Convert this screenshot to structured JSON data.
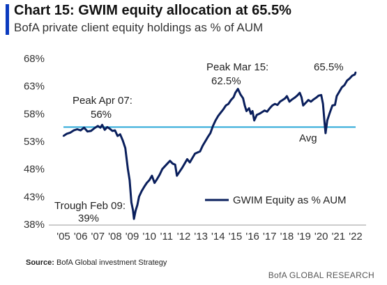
{
  "header": {
    "title": "Chart 15: GWIM equity allocation at 65.5%",
    "subtitle": "BofA private client equity holdings as % of AUM"
  },
  "footer": {
    "source_label": "Source:",
    "source_text": "BofA Global investment Strategy",
    "brand": "BofA GLOBAL RESEARCH"
  },
  "colors": {
    "series": "#0a1f5c",
    "average": "#29a8d8",
    "accent": "#0b3bbf"
  },
  "chart_data": {
    "type": "line",
    "title": "Chart 15: GWIM equity allocation at 65.5%",
    "subtitle": "BofA private client equity holdings as % of AUM",
    "xlabel": "",
    "ylabel": "",
    "ylim": [
      38,
      68
    ],
    "yticks": [
      "38%",
      "43%",
      "48%",
      "53%",
      "58%",
      "63%",
      "68%"
    ],
    "ytick_values": [
      38,
      43,
      48,
      53,
      58,
      63,
      68
    ],
    "xlim": [
      2005,
      2022.4
    ],
    "xticks": [
      "'05",
      "'06",
      "'07",
      "'08",
      "'09",
      "'10",
      "'11",
      "'12",
      "'13",
      "'14",
      "'15",
      "'16",
      "'17",
      "'18",
      "'19",
      "'20",
      "'21",
      "'22"
    ],
    "xtick_values": [
      2005,
      2006,
      2007,
      2008,
      2009,
      2010,
      2011,
      2012,
      2013,
      2014,
      2015,
      2016,
      2017,
      2018,
      2019,
      2020,
      2021,
      2022
    ],
    "grid": false,
    "legend_position": "bottom-right",
    "series": [
      {
        "name": "GWIM Equity as % AUM",
        "points": [
          [
            2005.0,
            54.0
          ],
          [
            2005.2,
            54.4
          ],
          [
            2005.4,
            54.6
          ],
          [
            2005.6,
            55.0
          ],
          [
            2005.8,
            55.2
          ],
          [
            2006.0,
            55.0
          ],
          [
            2006.2,
            55.5
          ],
          [
            2006.4,
            54.8
          ],
          [
            2006.6,
            54.9
          ],
          [
            2006.8,
            55.4
          ],
          [
            2007.0,
            55.8
          ],
          [
            2007.15,
            55.5
          ],
          [
            2007.25,
            56.0
          ],
          [
            2007.4,
            55.1
          ],
          [
            2007.55,
            55.6
          ],
          [
            2007.7,
            55.3
          ],
          [
            2007.85,
            54.9
          ],
          [
            2008.0,
            55.0
          ],
          [
            2008.15,
            54.0
          ],
          [
            2008.3,
            54.3
          ],
          [
            2008.45,
            53.2
          ],
          [
            2008.6,
            51.8
          ],
          [
            2008.75,
            48.0
          ],
          [
            2008.85,
            46.0
          ],
          [
            2008.95,
            42.0
          ],
          [
            2009.05,
            40.5
          ],
          [
            2009.1,
            39.0
          ],
          [
            2009.2,
            40.5
          ],
          [
            2009.3,
            41.5
          ],
          [
            2009.4,
            43.0
          ],
          [
            2009.55,
            44.0
          ],
          [
            2009.7,
            44.8
          ],
          [
            2009.85,
            45.5
          ],
          [
            2010.0,
            46.0
          ],
          [
            2010.15,
            46.8
          ],
          [
            2010.3,
            45.5
          ],
          [
            2010.45,
            46.2
          ],
          [
            2010.6,
            47.0
          ],
          [
            2010.75,
            48.0
          ],
          [
            2010.9,
            48.5
          ],
          [
            2011.05,
            49.0
          ],
          [
            2011.2,
            49.5
          ],
          [
            2011.35,
            49.0
          ],
          [
            2011.5,
            48.8
          ],
          [
            2011.6,
            46.8
          ],
          [
            2011.75,
            47.5
          ],
          [
            2011.9,
            48.2
          ],
          [
            2012.05,
            49.0
          ],
          [
            2012.2,
            49.8
          ],
          [
            2012.35,
            49.2
          ],
          [
            2012.5,
            50.0
          ],
          [
            2012.65,
            50.8
          ],
          [
            2012.8,
            51.0
          ],
          [
            2012.95,
            51.2
          ],
          [
            2013.1,
            52.2
          ],
          [
            2013.25,
            53.0
          ],
          [
            2013.4,
            53.8
          ],
          [
            2013.55,
            54.5
          ],
          [
            2013.7,
            55.8
          ],
          [
            2013.85,
            56.8
          ],
          [
            2014.0,
            57.6
          ],
          [
            2014.15,
            58.2
          ],
          [
            2014.3,
            58.8
          ],
          [
            2014.45,
            59.5
          ],
          [
            2014.6,
            59.8
          ],
          [
            2014.75,
            60.5
          ],
          [
            2014.9,
            61.0
          ],
          [
            2015.0,
            61.8
          ],
          [
            2015.15,
            62.5
          ],
          [
            2015.3,
            61.5
          ],
          [
            2015.45,
            60.8
          ],
          [
            2015.55,
            59.5
          ],
          [
            2015.65,
            58.5
          ],
          [
            2015.8,
            59.0
          ],
          [
            2015.9,
            58.0
          ],
          [
            2016.0,
            58.5
          ],
          [
            2016.1,
            56.8
          ],
          [
            2016.25,
            57.8
          ],
          [
            2016.4,
            58.0
          ],
          [
            2016.55,
            58.3
          ],
          [
            2016.7,
            58.6
          ],
          [
            2016.85,
            58.4
          ],
          [
            2017.0,
            59.0
          ],
          [
            2017.15,
            59.5
          ],
          [
            2017.3,
            59.8
          ],
          [
            2017.45,
            59.6
          ],
          [
            2017.6,
            60.2
          ],
          [
            2017.75,
            60.5
          ],
          [
            2017.9,
            60.8
          ],
          [
            2018.0,
            61.2
          ],
          [
            2018.15,
            60.2
          ],
          [
            2018.3,
            60.6
          ],
          [
            2018.45,
            60.9
          ],
          [
            2018.6,
            61.3
          ],
          [
            2018.75,
            61.8
          ],
          [
            2018.85,
            61.0
          ],
          [
            2018.95,
            59.5
          ],
          [
            2019.1,
            60.0
          ],
          [
            2019.25,
            60.5
          ],
          [
            2019.4,
            60.2
          ],
          [
            2019.55,
            60.6
          ],
          [
            2019.7,
            60.9
          ],
          [
            2019.85,
            61.3
          ],
          [
            2020.0,
            61.4
          ],
          [
            2020.1,
            59.8
          ],
          [
            2020.2,
            56.2
          ],
          [
            2020.25,
            54.5
          ],
          [
            2020.35,
            56.8
          ],
          [
            2020.5,
            58.2
          ],
          [
            2020.65,
            59.5
          ],
          [
            2020.8,
            59.6
          ],
          [
            2020.9,
            61.2
          ],
          [
            2021.05,
            62.0
          ],
          [
            2021.2,
            62.8
          ],
          [
            2021.35,
            63.2
          ],
          [
            2021.5,
            64.0
          ],
          [
            2021.65,
            64.4
          ],
          [
            2021.8,
            64.9
          ],
          [
            2021.95,
            65.1
          ],
          [
            2022.0,
            65.5
          ]
        ]
      },
      {
        "name": "Avg",
        "constant": 55.6
      }
    ],
    "annotations": [
      {
        "line1": "Peak Apr 07:",
        "line2": "56%"
      },
      {
        "line1": "Trough Feb 09:",
        "line2": "39%"
      },
      {
        "line1": "Peak Mar 15:",
        "line2": "62.5%"
      },
      {
        "line1": "65.5%",
        "line2": ""
      },
      {
        "line1": "Avg",
        "line2": ""
      }
    ],
    "legend": {
      "label": "GWIM Equity as % AUM"
    }
  }
}
